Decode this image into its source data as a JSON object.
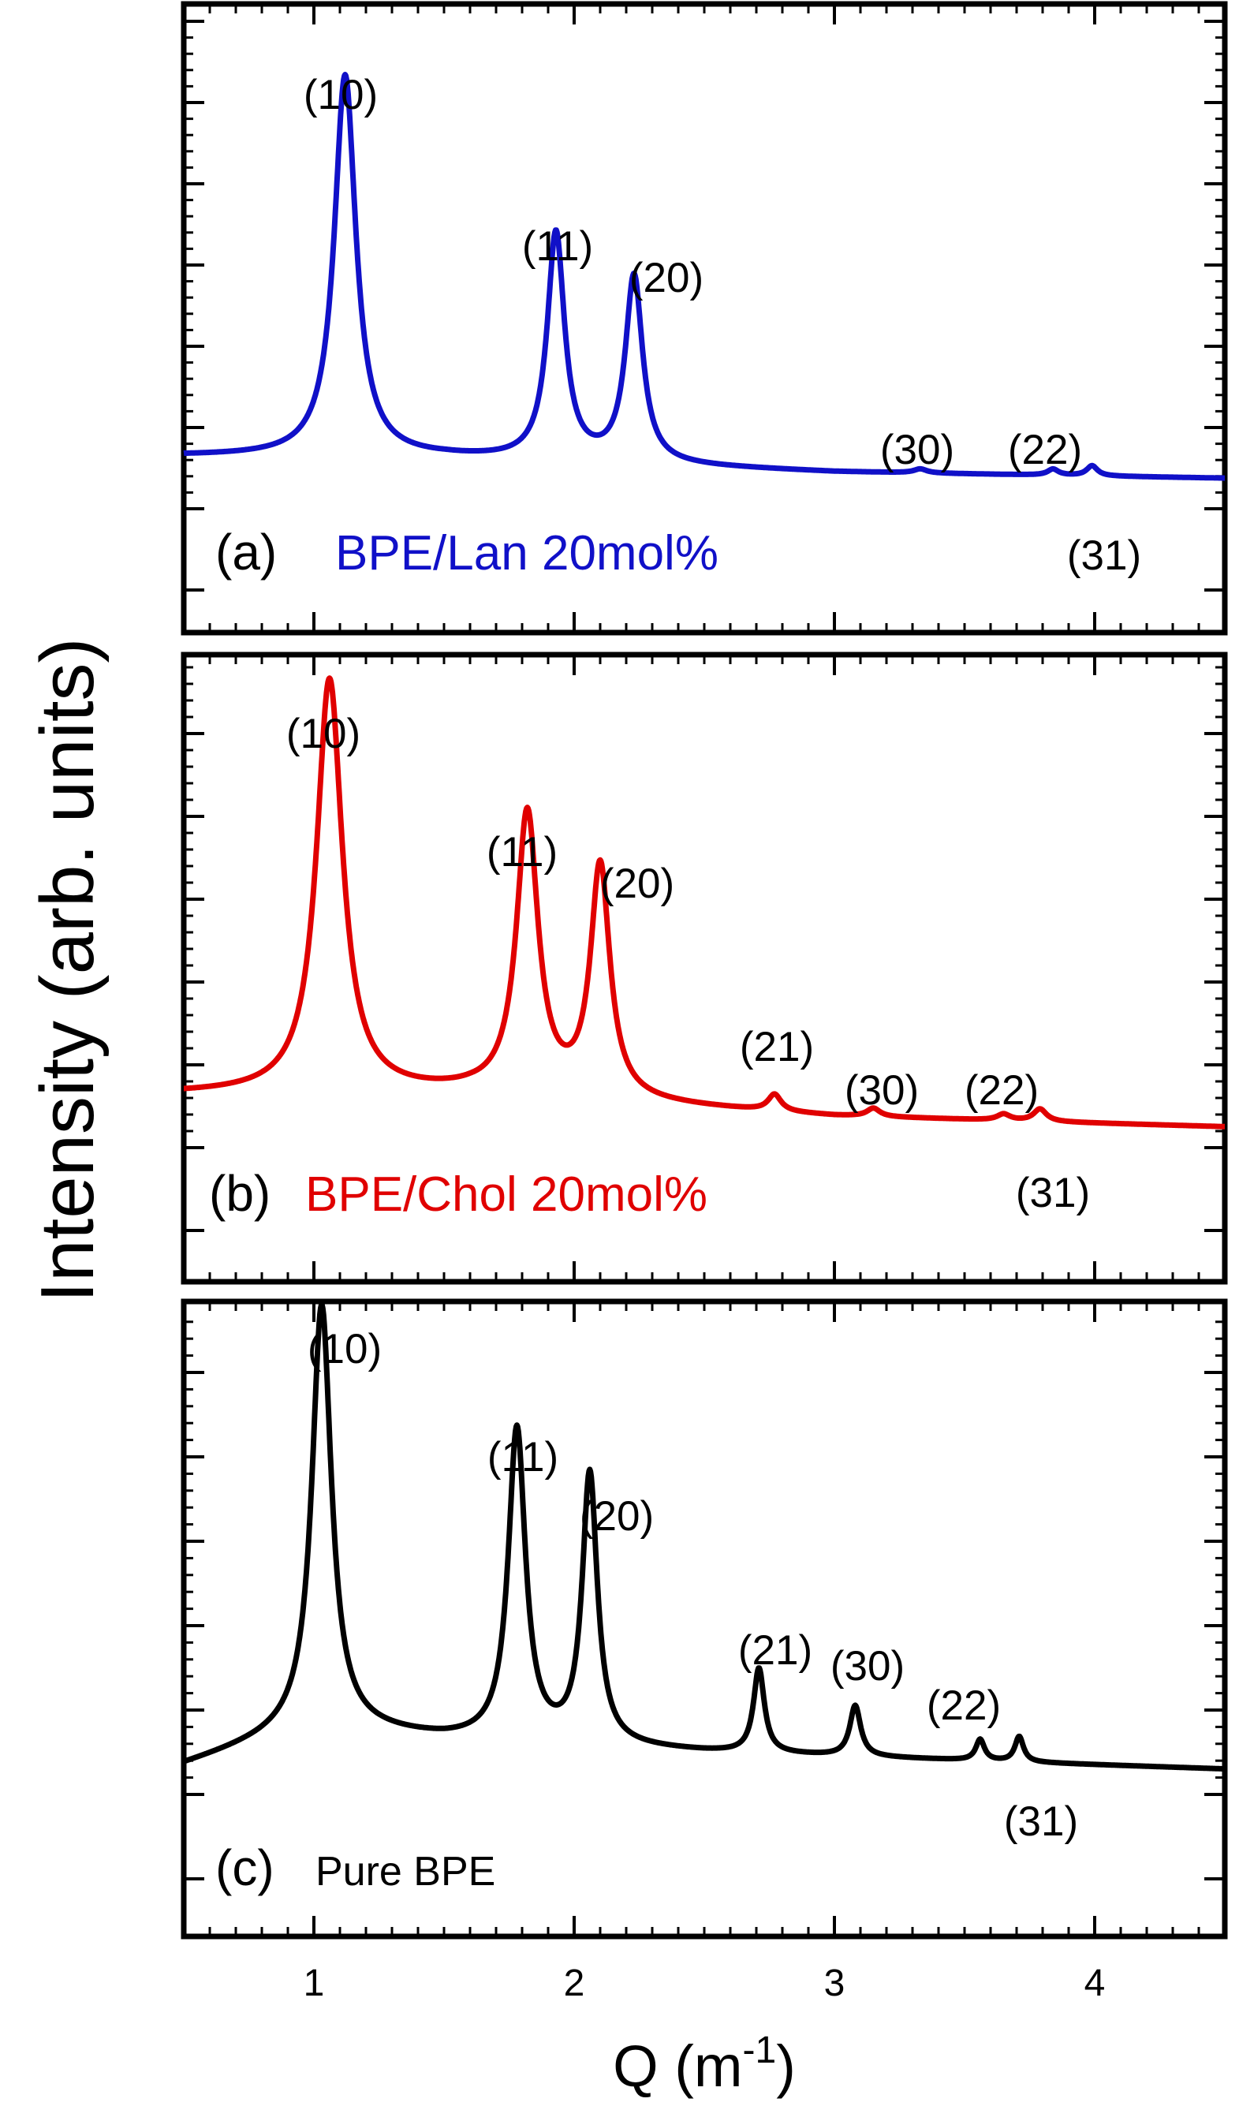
{
  "chart_data": {
    "type": "line",
    "ylabel": "Intensity (arb. units)",
    "xlabel_main": "Q (m",
    "xlabel_sup": "-1",
    "xlabel_close": ")",
    "xlim": [
      0.5,
      4.5
    ],
    "x_ticks": [
      {
        "value": 1,
        "label": "1"
      },
      {
        "value": 2,
        "label": "2"
      },
      {
        "value": 3,
        "label": "3"
      },
      {
        "value": 4,
        "label": "4"
      }
    ],
    "panels": [
      {
        "id": "a",
        "panel_label": "(a)",
        "series_name": "BPE/Lan 20mol%",
        "color": "#1010c8",
        "baseline": [
          [
            0.5,
            0.13
          ],
          [
            1.5,
            0.125
          ],
          [
            3.0,
            0.09
          ],
          [
            4.5,
            0.075
          ]
        ],
        "peaks": [
          {
            "label": "(10)",
            "q": 1.12,
            "height": 0.94,
            "width": 0.05
          },
          {
            "label": "(11)",
            "q": 1.93,
            "height": 0.56,
            "width": 0.04
          },
          {
            "label": "(20)",
            "q": 2.23,
            "height": 0.46,
            "width": 0.04
          },
          {
            "label": "(30)",
            "q": 3.33,
            "height": 0.01,
            "width": 0.03
          },
          {
            "label": "(22)",
            "q": 3.84,
            "height": 0.015,
            "width": 0.025
          },
          {
            "label": "(31)",
            "q": 3.99,
            "height": 0.025,
            "width": 0.025
          }
        ]
      },
      {
        "id": "b",
        "panel_label": "(b)",
        "series_name": "BPE/Chol 20mol%",
        "color": "#e00000",
        "baseline": [
          [
            0.5,
            0.13
          ],
          [
            1.6,
            0.13
          ],
          [
            3.0,
            0.075
          ],
          [
            4.5,
            0.05
          ]
        ],
        "peaks": [
          {
            "label": "(10)",
            "q": 1.06,
            "height": 1.0,
            "width": 0.06
          },
          {
            "label": "(11)",
            "q": 1.82,
            "height": 0.68,
            "width": 0.05
          },
          {
            "label": "(20)",
            "q": 2.1,
            "height": 0.56,
            "width": 0.045
          },
          {
            "label": "(21)",
            "q": 2.77,
            "height": 0.04,
            "width": 0.03
          },
          {
            "label": "(30)",
            "q": 3.15,
            "height": 0.02,
            "width": 0.03
          },
          {
            "label": "(22)",
            "q": 3.65,
            "height": 0.015,
            "width": 0.03
          },
          {
            "label": "(31)",
            "q": 3.79,
            "height": 0.03,
            "width": 0.03
          }
        ]
      },
      {
        "id": "c",
        "panel_label": "(c)",
        "series_name": "Pure BPE",
        "color": "#000000",
        "baseline": [
          [
            0.5,
            0.07
          ],
          [
            1.0,
            0.16
          ],
          [
            1.5,
            0.13
          ],
          [
            2.5,
            0.1
          ],
          [
            4.5,
            0.06
          ]
        ],
        "peaks": [
          {
            "label": "(10)",
            "q": 1.03,
            "height": 1.0,
            "width": 0.045
          },
          {
            "label": "(11)",
            "q": 1.78,
            "height": 0.74,
            "width": 0.04
          },
          {
            "label": "(20)",
            "q": 2.06,
            "height": 0.64,
            "width": 0.035
          },
          {
            "label": "(21)",
            "q": 2.71,
            "height": 0.2,
            "width": 0.025
          },
          {
            "label": "(30)",
            "q": 3.08,
            "height": 0.12,
            "width": 0.025
          },
          {
            "label": "(22)",
            "q": 3.56,
            "height": 0.05,
            "width": 0.02
          },
          {
            "label": "(31)",
            "q": 3.71,
            "height": 0.06,
            "width": 0.02
          }
        ]
      }
    ]
  }
}
